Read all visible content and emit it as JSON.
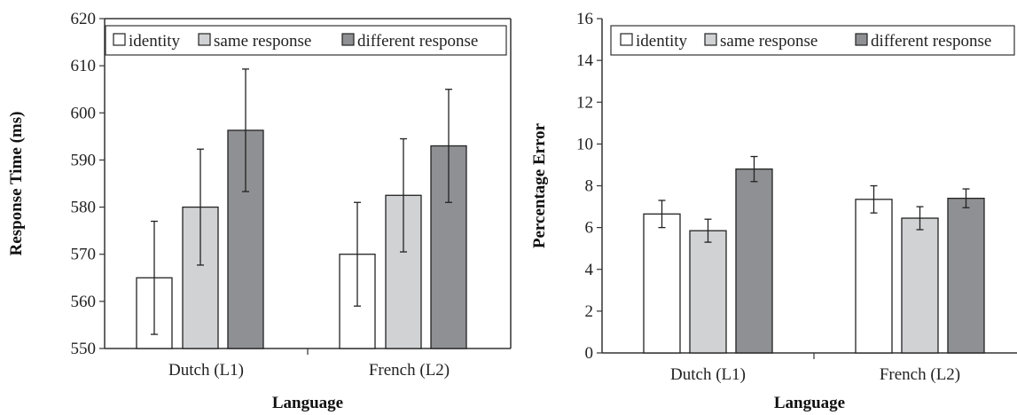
{
  "chart_data": [
    {
      "type": "bar",
      "categories": [
        "Dutch (L1)",
        "French (L2)"
      ],
      "xlabel": "Language",
      "ylabel": "Response Time (ms)",
      "ylim": [
        550,
        620
      ],
      "yticks": [
        550,
        560,
        570,
        580,
        590,
        600,
        610,
        620
      ],
      "legend_position": "top",
      "grid": false,
      "series": [
        {
          "name": "identity",
          "color": "#ffffff",
          "values": [
            565,
            570
          ],
          "error": [
            12,
            11
          ]
        },
        {
          "name": "same response",
          "color": "#d0d2d4",
          "values": [
            580,
            582.5
          ],
          "error": [
            12.3,
            12
          ]
        },
        {
          "name": "different response",
          "color": "#8e9093",
          "values": [
            596.3,
            593
          ],
          "error": [
            13,
            12
          ]
        }
      ]
    },
    {
      "type": "bar",
      "categories": [
        "Dutch (L1)",
        "French (L2)"
      ],
      "xlabel": "Language",
      "ylabel": "Percentage Error",
      "ylim": [
        0,
        16
      ],
      "yticks": [
        0,
        2,
        4,
        6,
        8,
        10,
        12,
        14,
        16
      ],
      "legend_position": "top",
      "grid": false,
      "series": [
        {
          "name": "identity",
          "color": "#ffffff",
          "values": [
            6.65,
            7.35
          ],
          "error": [
            0.65,
            0.65
          ]
        },
        {
          "name": "same response",
          "color": "#d0d2d4",
          "values": [
            5.85,
            6.45
          ],
          "error": [
            0.55,
            0.55
          ]
        },
        {
          "name": "different response",
          "color": "#8e9093",
          "values": [
            8.8,
            7.4
          ],
          "error": [
            0.6,
            0.45
          ]
        }
      ]
    }
  ]
}
